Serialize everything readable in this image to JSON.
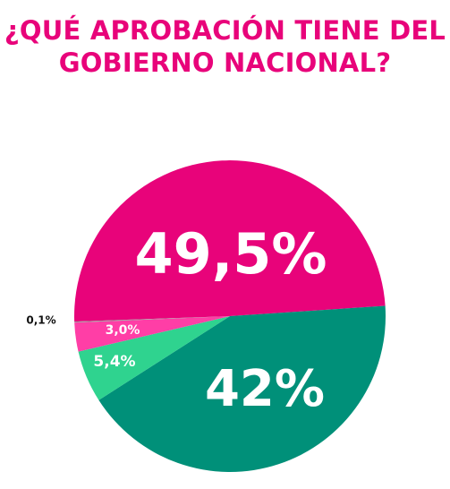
{
  "chart_data": {
    "type": "pie",
    "title_lines": [
      "¿QUÉ APROBACIÓN TIENE DEL",
      "GOBIERNO NACIONAL?"
    ],
    "start_angle_deg": 182,
    "slices": [
      {
        "value": 49.5,
        "label": "49,5%",
        "color": "#e8037a"
      },
      {
        "value": 42.0,
        "label": "42%",
        "color": "#009079"
      },
      {
        "value": 5.4,
        "label": "5,4%",
        "color": "#2fd38f"
      },
      {
        "value": 3.0,
        "label": "3,0%",
        "color": "#ff3ea6"
      },
      {
        "value": 0.1,
        "label": "0,1%",
        "color": "#9a9a9a"
      }
    ]
  }
}
